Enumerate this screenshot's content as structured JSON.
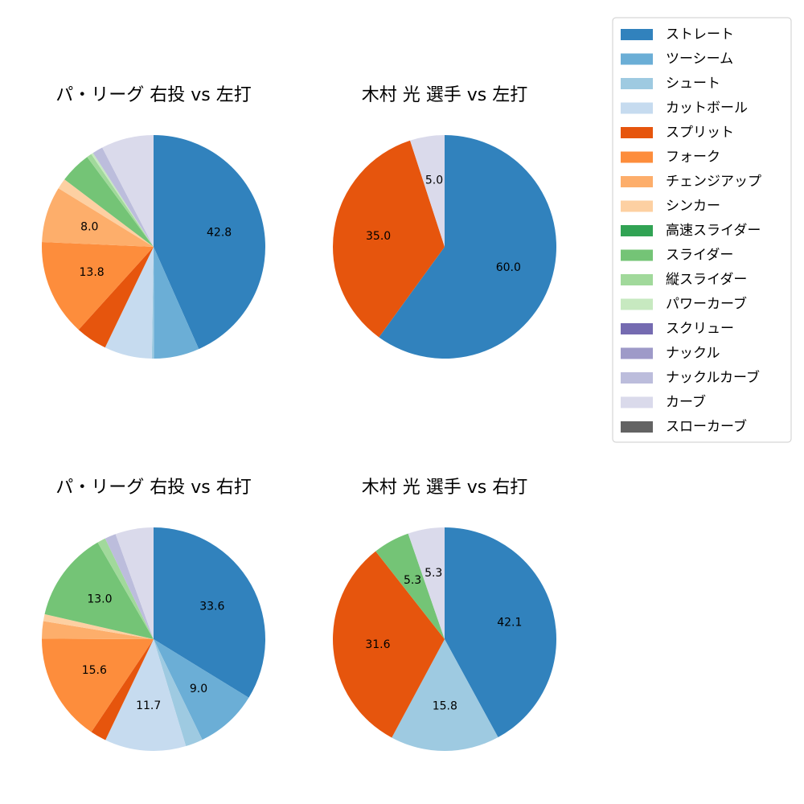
{
  "colors": {
    "ストレート": "#3182bd",
    "ツーシーム": "#6baed6",
    "シュート": "#9ecae1",
    "カットボール": "#c6dbef",
    "スプリット": "#e6550d",
    "フォーク": "#fd8d3c",
    "チェンジアップ": "#fdae6b",
    "シンカー": "#fdd0a2",
    "高速スライダー": "#31a354",
    "スライダー": "#74c476",
    "縦スライダー": "#a1d99b",
    "パワーカーブ": "#c7e9c0",
    "スクリュー": "#756bb1",
    "ナックル": "#9e9ac8",
    "ナックルカーブ": "#bcbddc",
    "カーブ": "#dadaeb",
    "スローカーブ": "#636363"
  },
  "legend": {
    "entries": [
      "ストレート",
      "ツーシーム",
      "シュート",
      "カットボール",
      "スプリット",
      "フォーク",
      "チェンジアップ",
      "シンカー",
      "高速スライダー",
      "スライダー",
      "縦スライダー",
      "パワーカーブ",
      "スクリュー",
      "ナックル",
      "ナックルカーブ",
      "カーブ",
      "スローカーブ"
    ]
  },
  "chart_data": [
    {
      "type": "pie",
      "title": "パ・リーグ 右投 vs 左打",
      "slices": [
        {
          "category": "ストレート",
          "value": 42.8,
          "label": "42.8"
        },
        {
          "category": "ツーシーム",
          "value": 6.5
        },
        {
          "category": "シュート",
          "value": 0.3
        },
        {
          "category": "カットボール",
          "value": 6.8
        },
        {
          "category": "スプリット",
          "value": 4.5
        },
        {
          "category": "フォーク",
          "value": 13.8,
          "label": "13.8"
        },
        {
          "category": "チェンジアップ",
          "value": 8.0,
          "label": "8.0"
        },
        {
          "category": "シンカー",
          "value": 1.5
        },
        {
          "category": "スライダー",
          "value": 4.5
        },
        {
          "category": "縦スライダー",
          "value": 0.7
        },
        {
          "category": "パワーカーブ",
          "value": 0.3
        },
        {
          "category": "ナックルカーブ",
          "value": 1.5
        },
        {
          "category": "カーブ",
          "value": 7.5
        }
      ]
    },
    {
      "type": "pie",
      "title": "木村 光 選手 vs 左打",
      "slices": [
        {
          "category": "ストレート",
          "value": 60.0,
          "label": "60.0"
        },
        {
          "category": "スプリット",
          "value": 35.0,
          "label": "35.0"
        },
        {
          "category": "カーブ",
          "value": 5.0,
          "label": "5.0"
        }
      ]
    },
    {
      "type": "pie",
      "title": "パ・リーグ 右投 vs 右打",
      "slices": [
        {
          "category": "ストレート",
          "value": 33.6,
          "label": "33.6"
        },
        {
          "category": "ツーシーム",
          "value": 9.0,
          "label": "9.0"
        },
        {
          "category": "シュート",
          "value": 2.5
        },
        {
          "category": "カットボール",
          "value": 11.7,
          "label": "11.7"
        },
        {
          "category": "スプリット",
          "value": 2.3
        },
        {
          "category": "フォーク",
          "value": 15.6,
          "label": "15.6"
        },
        {
          "category": "チェンジアップ",
          "value": 2.5
        },
        {
          "category": "シンカー",
          "value": 1.0
        },
        {
          "category": "スライダー",
          "value": 13.0,
          "label": "13.0"
        },
        {
          "category": "縦スライダー",
          "value": 1.2
        },
        {
          "category": "ナックルカーブ",
          "value": 1.6
        },
        {
          "category": "カーブ",
          "value": 5.5
        }
      ]
    },
    {
      "type": "pie",
      "title": "木村 光 選手 vs 右打",
      "slices": [
        {
          "category": "ストレート",
          "value": 42.1,
          "label": "42.1"
        },
        {
          "category": "シュート",
          "value": 15.8,
          "label": "15.8"
        },
        {
          "category": "スプリット",
          "value": 31.6,
          "label": "31.6"
        },
        {
          "category": "スライダー",
          "value": 5.3,
          "label": "5.3"
        },
        {
          "category": "カーブ",
          "value": 5.3,
          "label": "5.3"
        }
      ]
    }
  ]
}
